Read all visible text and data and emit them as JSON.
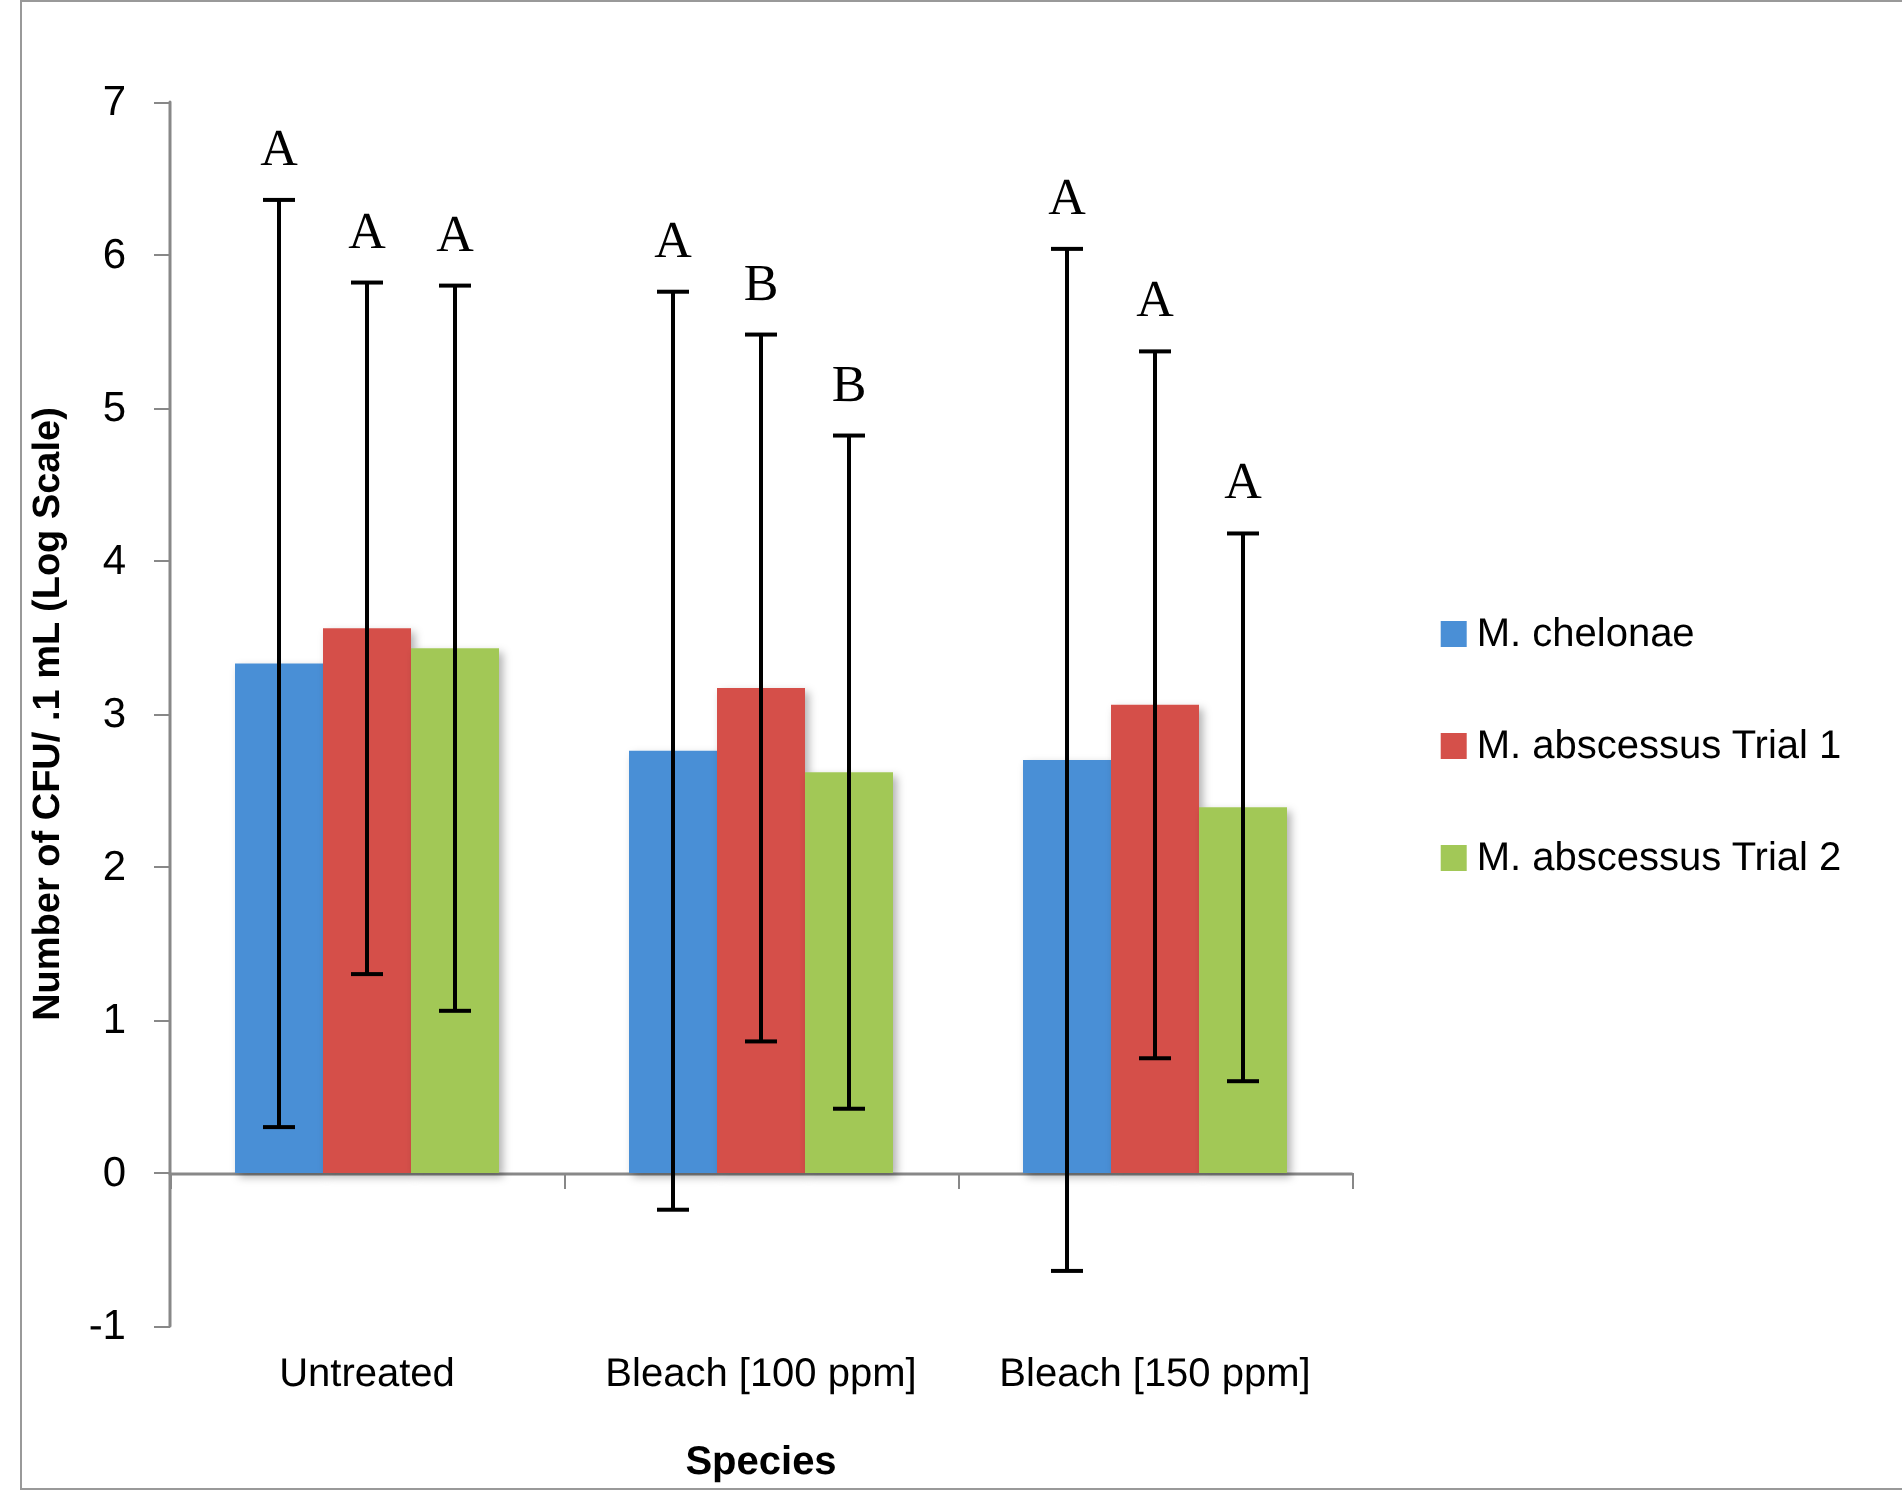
{
  "chart_data": {
    "type": "bar",
    "xlabel": "Species",
    "ylabel": "Number of CFU/ .1 mL (Log Scale)",
    "categories": [
      "Untreated",
      "Bleach [100 ppm]",
      "Bleach [150 ppm]"
    ],
    "series": [
      {
        "name": "M. chelonae",
        "color": "#4a8fd6",
        "values": [
          3.33,
          2.76,
          2.7
        ],
        "errors": [
          3.03,
          3.0,
          3.34
        ]
      },
      {
        "name": "M. abscessus Trial 1",
        "color": "#d5504a",
        "values": [
          3.56,
          3.17,
          3.06
        ],
        "errors": [
          2.26,
          2.31,
          2.31
        ]
      },
      {
        "name": "M. abscessus Trial 2",
        "color": "#a2c857",
        "values": [
          3.43,
          2.62,
          2.39
        ],
        "errors": [
          2.37,
          2.2,
          1.79
        ]
      }
    ],
    "annotations": [
      "A",
      "A",
      "A",
      "A",
      "B",
      "B",
      "A",
      "A",
      "A"
    ],
    "ylim": [
      -1,
      7
    ],
    "yticks": [
      -1,
      0,
      1,
      2,
      3,
      4,
      5,
      6,
      7
    ],
    "legend": "right"
  }
}
